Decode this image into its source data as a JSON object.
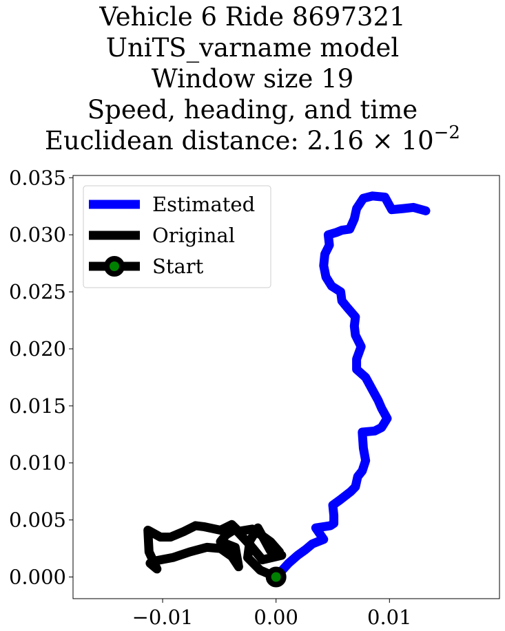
{
  "title": {
    "line1": "Vehicle 6 Ride 8697321",
    "line2": "UniTS_varname model",
    "line3": "Window size 19",
    "line4": "Speed, heading, and time",
    "line5_prefix": "Euclidean distance: 2.16 × 10",
    "line5_exponent": "−2"
  },
  "chart_data": {
    "type": "line",
    "xlim": [
      -0.0179,
      0.0197
    ],
    "ylim": [
      -0.0019,
      0.0352
    ],
    "x_ticks": [
      -0.01,
      0.0,
      0.01
    ],
    "x_tick_labels": [
      "−0.01",
      "0.00",
      "0.01"
    ],
    "y_ticks": [
      0.0,
      0.005,
      0.01,
      0.015,
      0.02,
      0.025,
      0.03,
      0.035
    ],
    "y_tick_labels": [
      "0.000",
      "0.005",
      "0.010",
      "0.015",
      "0.020",
      "0.025",
      "0.030",
      "0.035"
    ],
    "grid": false,
    "legend_position": "top-left",
    "series": [
      {
        "name": "Estimated",
        "color": "#0000ff",
        "points": [
          [
            0.0,
            0.0
          ],
          [
            0.0011,
            0.0012
          ],
          [
            0.0019,
            0.0019
          ],
          [
            0.0026,
            0.0024
          ],
          [
            0.0032,
            0.0029
          ],
          [
            0.0042,
            0.0033
          ],
          [
            0.0035,
            0.0043
          ],
          [
            0.0048,
            0.0045
          ],
          [
            0.0051,
            0.0047
          ],
          [
            0.0051,
            0.0054
          ],
          [
            0.005,
            0.0063
          ],
          [
            0.0057,
            0.0068
          ],
          [
            0.0066,
            0.0075
          ],
          [
            0.007,
            0.0079
          ],
          [
            0.0072,
            0.0088
          ],
          [
            0.0076,
            0.0093
          ],
          [
            0.0079,
            0.0102
          ],
          [
            0.0077,
            0.0113
          ],
          [
            0.0076,
            0.0127
          ],
          [
            0.0087,
            0.0128
          ],
          [
            0.0093,
            0.0131
          ],
          [
            0.0098,
            0.0139
          ],
          [
            0.0093,
            0.0148
          ],
          [
            0.009,
            0.0155
          ],
          [
            0.0085,
            0.0164
          ],
          [
            0.0079,
            0.0175
          ],
          [
            0.0071,
            0.0182
          ],
          [
            0.0071,
            0.0191
          ],
          [
            0.0075,
            0.0202
          ],
          [
            0.007,
            0.0212
          ],
          [
            0.0069,
            0.022
          ],
          [
            0.007,
            0.0228
          ],
          [
            0.0063,
            0.0236
          ],
          [
            0.0058,
            0.0242
          ],
          [
            0.0057,
            0.025
          ],
          [
            0.0049,
            0.0255
          ],
          [
            0.0044,
            0.0263
          ],
          [
            0.0042,
            0.0273
          ],
          [
            0.0043,
            0.0283
          ],
          [
            0.0047,
            0.0291
          ],
          [
            0.0046,
            0.03
          ],
          [
            0.0053,
            0.0302
          ],
          [
            0.0058,
            0.0304
          ],
          [
            0.0065,
            0.0305
          ],
          [
            0.0069,
            0.0314
          ],
          [
            0.0071,
            0.0323
          ],
          [
            0.0077,
            0.0332
          ],
          [
            0.0085,
            0.0334
          ],
          [
            0.0096,
            0.0333
          ],
          [
            0.0102,
            0.0322
          ],
          [
            0.0112,
            0.0323
          ],
          [
            0.0121,
            0.0324
          ],
          [
            0.0132,
            0.0321
          ]
        ]
      },
      {
        "name": "Original",
        "color": "#000000",
        "points": [
          [
            0.0,
            0.0
          ],
          [
            -0.0014,
            0.0006
          ],
          [
            -0.0025,
            0.0017
          ],
          [
            -0.0023,
            0.0032
          ],
          [
            -0.0016,
            0.0043
          ],
          [
            -0.0005,
            0.0023
          ],
          [
            0.0005,
            0.0019
          ],
          [
            -0.0012,
            0.0015
          ],
          [
            -0.0022,
            0.0027
          ],
          [
            -0.0036,
            0.0042
          ],
          [
            -0.0044,
            0.0037
          ],
          [
            -0.0049,
            0.0031
          ],
          [
            -0.0036,
            0.0026
          ],
          [
            -0.0033,
            0.0009
          ],
          [
            -0.0039,
            0.0018
          ],
          [
            -0.0049,
            0.0025
          ],
          [
            -0.0061,
            0.0026
          ],
          [
            -0.0076,
            0.0022
          ],
          [
            -0.0091,
            0.0017
          ],
          [
            -0.0107,
            0.0014
          ],
          [
            -0.0111,
            0.0012
          ],
          [
            -0.0105,
            0.0007
          ],
          [
            -0.0112,
            0.0022
          ],
          [
            -0.0113,
            0.0041
          ],
          [
            -0.0102,
            0.0035
          ],
          [
            -0.0093,
            0.0035
          ],
          [
            -0.0081,
            0.004
          ],
          [
            -0.0071,
            0.0045
          ],
          [
            -0.0063,
            0.0044
          ],
          [
            -0.0049,
            0.0041
          ],
          [
            -0.0039,
            0.0046
          ],
          [
            -0.0033,
            0.004
          ],
          [
            -0.0021,
            0.0042
          ],
          [
            -0.0012,
            0.0036
          ],
          [
            -0.0005,
            0.0031
          ],
          [
            0.0003,
            0.0022
          ]
        ]
      }
    ],
    "start_marker": {
      "name": "Start",
      "point": [
        0.0,
        0.0
      ],
      "line_color": "#000000",
      "marker_edge": "#000000",
      "marker_face": "#008000"
    }
  }
}
